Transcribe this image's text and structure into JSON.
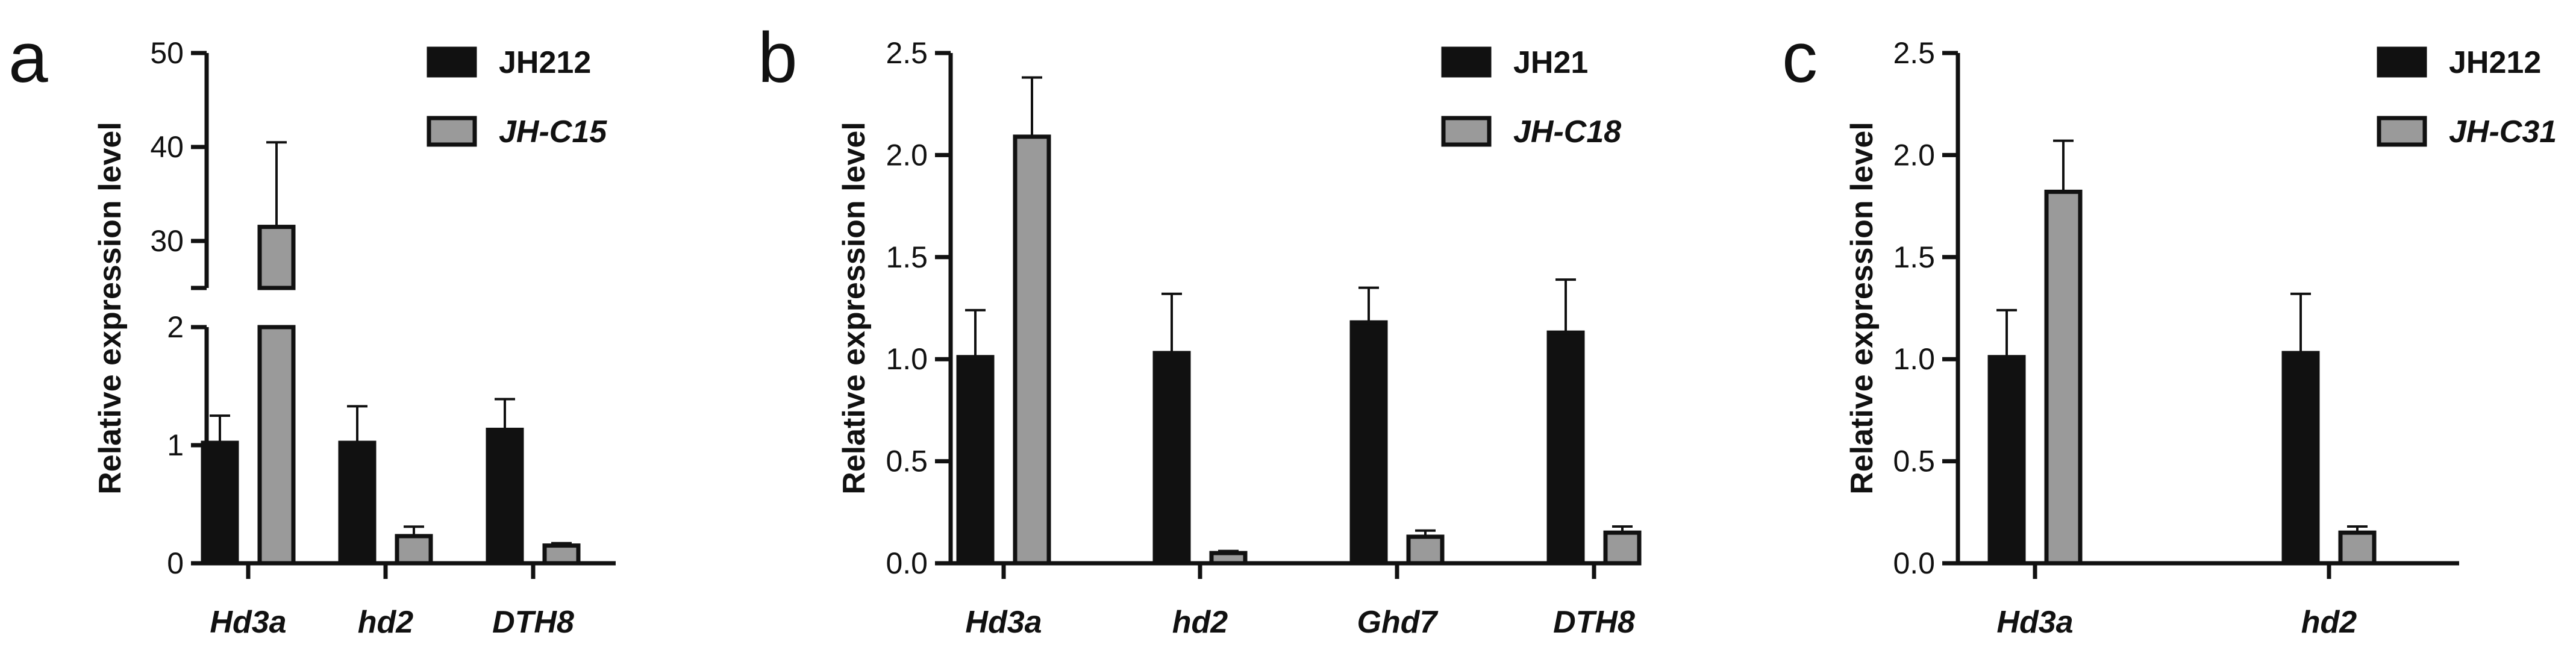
{
  "chart_data": [
    {
      "panel": "a",
      "type": "bar",
      "ylabel": "Relative expression level",
      "categories": [
        "Hd3a",
        "hd2",
        "DTH8"
      ],
      "axis_break": {
        "lower": [
          0,
          2
        ],
        "upper": [
          25,
          50
        ]
      },
      "yticks_lower": [
        "0",
        "1",
        "2"
      ],
      "yticks_upper": [
        "30",
        "40",
        "50"
      ],
      "legend_position": "top-right",
      "colors": [
        "#111111",
        "#9a9a9a"
      ],
      "series": [
        {
          "name": "JH212",
          "italic": false,
          "values": [
            1.02,
            1.02,
            1.13
          ],
          "errors": [
            0.23,
            0.31,
            0.26
          ]
        },
        {
          "name": "JH-C15",
          "italic": true,
          "values": [
            31.5,
            0.23,
            0.15
          ],
          "errors": [
            9.0,
            0.08,
            0.02
          ]
        }
      ]
    },
    {
      "panel": "b",
      "type": "bar",
      "ylabel": "Relative expression level",
      "categories": [
        "Hd3a",
        "hd2",
        "Ghd7",
        "DTH8"
      ],
      "ylim": [
        0,
        2.5
      ],
      "yticks": [
        "0.0",
        "0.5",
        "1.0",
        "1.5",
        "2.0",
        "2.5"
      ],
      "legend_position": "top-right",
      "colors": [
        "#111111",
        "#9a9a9a"
      ],
      "series": [
        {
          "name": "JH21",
          "italic": false,
          "values": [
            1.01,
            1.03,
            1.18,
            1.13
          ],
          "errors": [
            0.23,
            0.29,
            0.17,
            0.26
          ]
        },
        {
          "name": "JH-C18",
          "italic": true,
          "values": [
            2.09,
            0.05,
            0.13,
            0.15
          ],
          "errors": [
            0.29,
            0.01,
            0.03,
            0.03
          ]
        }
      ]
    },
    {
      "panel": "c",
      "type": "bar",
      "ylabel": "Relative expression level",
      "categories": [
        "Hd3a",
        "hd2"
      ],
      "ylim": [
        0,
        2.5
      ],
      "yticks": [
        "0.0",
        "0.5",
        "1.0",
        "1.5",
        "2.0",
        "2.5"
      ],
      "legend_position": "top-right",
      "colors": [
        "#111111",
        "#9a9a9a"
      ],
      "series": [
        {
          "name": "JH212",
          "italic": false,
          "values": [
            1.01,
            1.03
          ],
          "errors": [
            0.23,
            0.29
          ]
        },
        {
          "name": "JH-C31",
          "italic": true,
          "values": [
            1.82,
            0.15
          ],
          "errors": [
            0.25,
            0.03
          ]
        }
      ]
    }
  ]
}
